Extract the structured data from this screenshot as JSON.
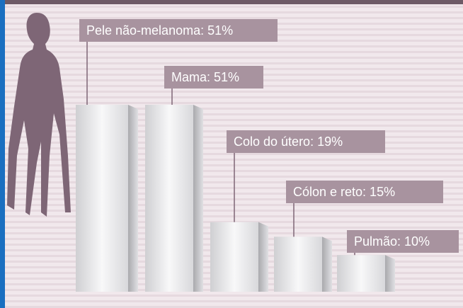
{
  "chart_data": {
    "type": "bar",
    "values": [
      51,
      51,
      19,
      15,
      10
    ],
    "value_labels": [
      "Pele não-melanoma: 51%",
      "Mama: 51%",
      "Colo do útero: 19%",
      "Cólon e reto: 15%",
      "Pulmão: 10%"
    ],
    "color": "#e4e4e6"
  }
}
